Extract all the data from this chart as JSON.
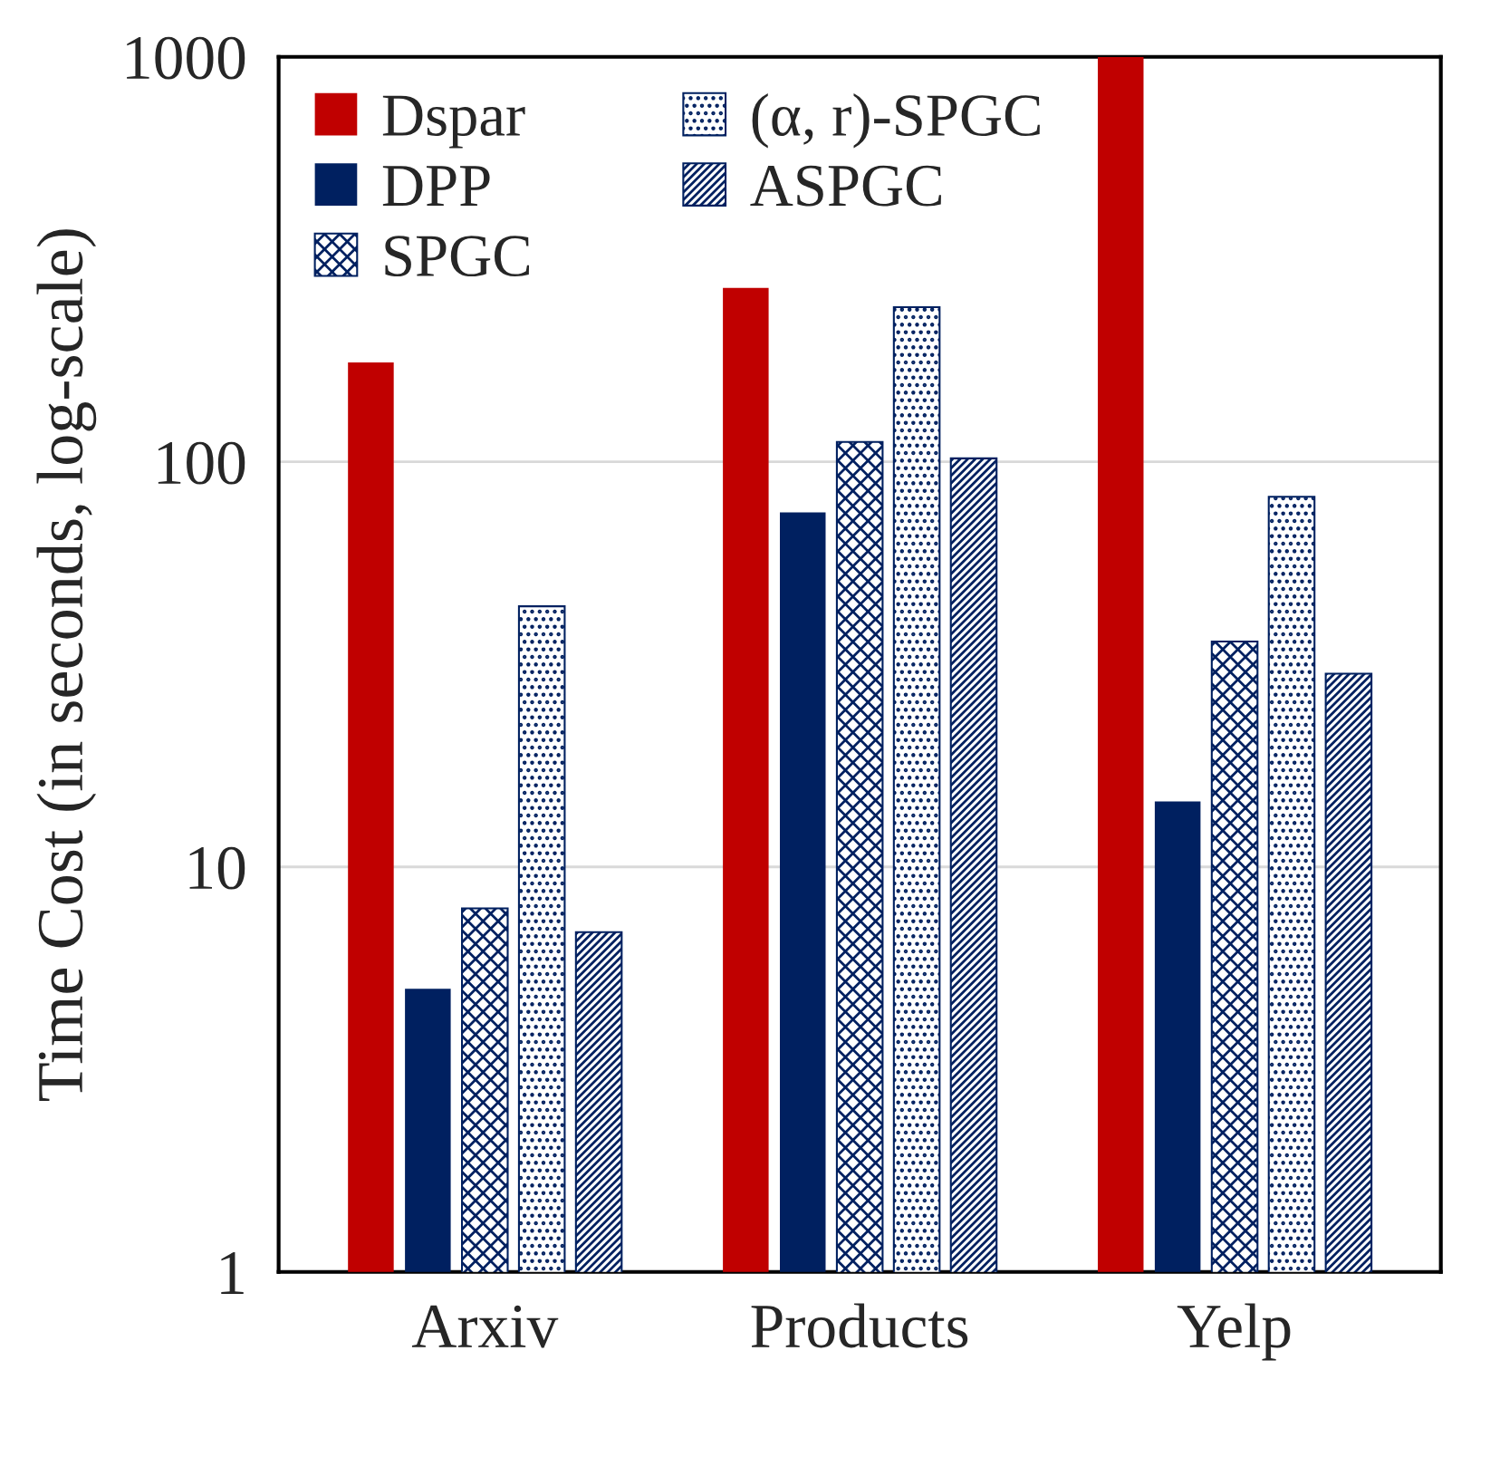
{
  "chart_data": {
    "type": "bar",
    "ylabel": "Time Cost (in seconds, log-scale)",
    "categories": [
      "Arxiv",
      "Products",
      "Yelp"
    ],
    "series": [
      {
        "name": "Dspar",
        "color": "#c00000",
        "values": [
          176,
          269,
          1000
        ]
      },
      {
        "name": "DPP",
        "color": "#002060",
        "values": [
          5,
          75,
          14.5
        ]
      },
      {
        "name": "SPGC",
        "color": "#002060",
        "values": [
          7.9,
          112,
          36
        ]
      },
      {
        "name": "(α, r)-SPGC",
        "color": "#002060",
        "values": [
          44,
          241,
          82
        ]
      },
      {
        "name": "ASPGC",
        "color": "#002060",
        "values": [
          6.9,
          102,
          30
        ]
      }
    ],
    "log": true,
    "ylim": [
      1,
      1000
    ],
    "yticks": [
      1,
      10,
      100,
      1000
    ],
    "grid": "y",
    "legend": "top left"
  }
}
